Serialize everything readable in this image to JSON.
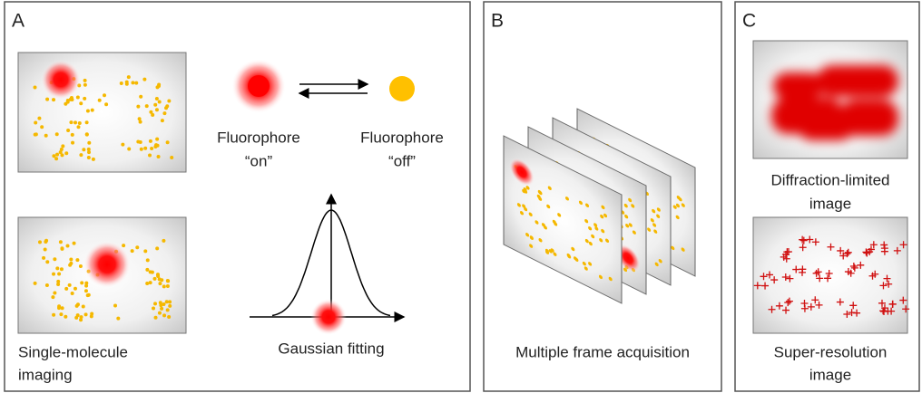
{
  "panels": [
    {
      "label": "A",
      "fluorophore_on": [
        "Fluorophore",
        "“on”"
      ],
      "fluorophore_off": [
        "Fluorophore",
        "“off”"
      ],
      "single_molecule": [
        "Single-molecule",
        "imaging"
      ],
      "gaussian": "Gaussian fitting"
    },
    {
      "label": "B",
      "caption": "Multiple frame acquisition"
    },
    {
      "label": "C",
      "diffraction": [
        "Diffraction-limited",
        "image"
      ],
      "super_resolution": [
        "Super-resolution",
        "image"
      ]
    }
  ]
}
